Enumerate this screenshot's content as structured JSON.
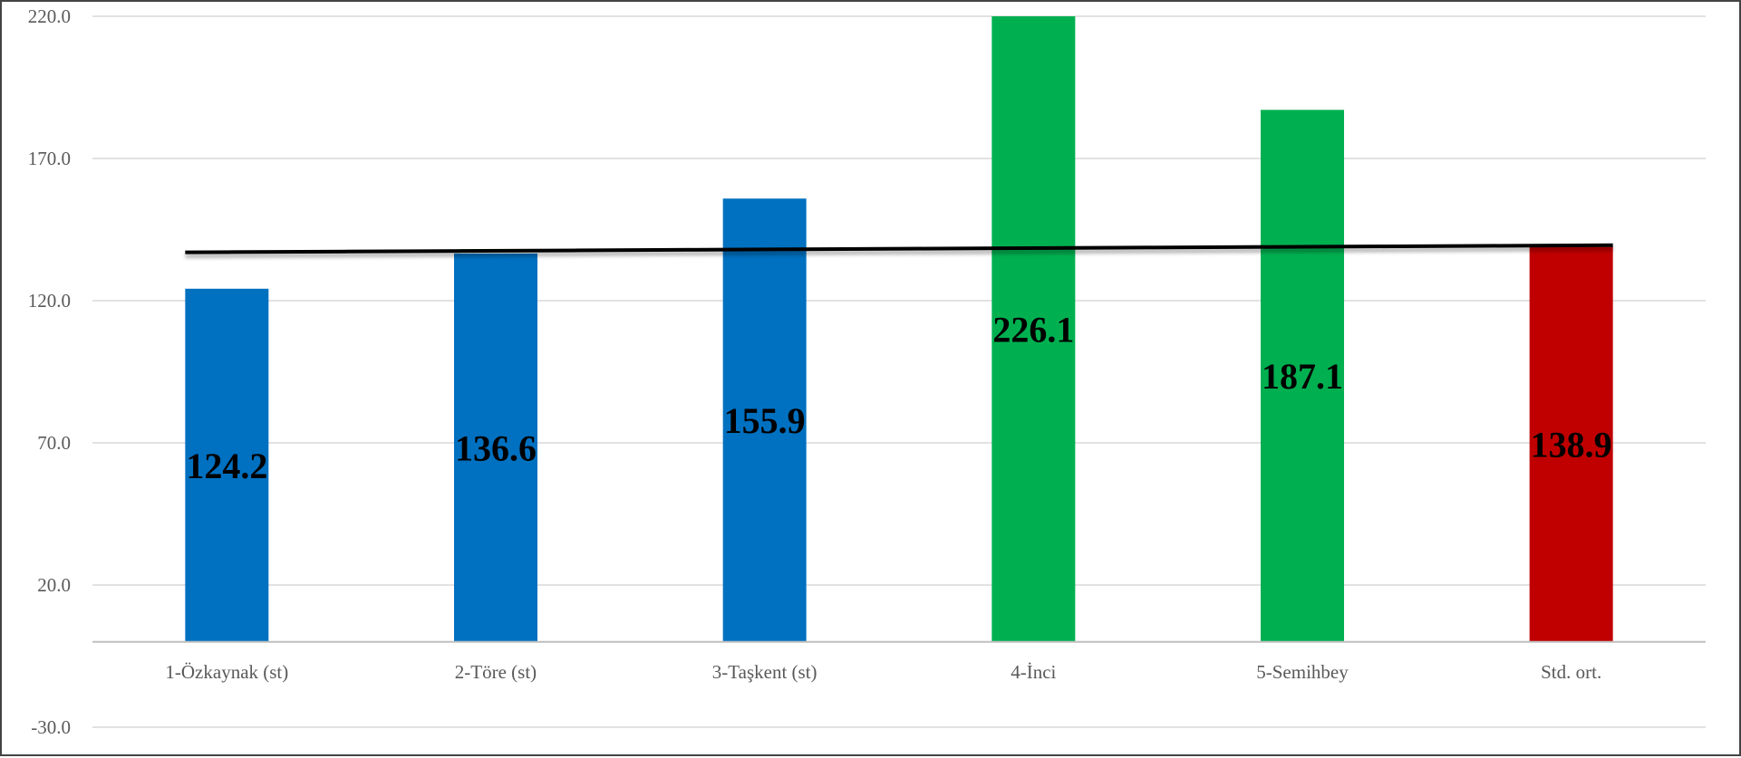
{
  "chart_data": {
    "type": "bar",
    "title": "",
    "xlabel": "",
    "ylabel": "",
    "categories": [
      "1-Özkaynak (st)",
      "2-Töre (st)",
      "3-Taşkent (st)",
      "4-İnci",
      "5-Semihbey",
      "Std. ort."
    ],
    "values": [
      124.2,
      136.6,
      155.9,
      226.1,
      187.1,
      138.9
    ],
    "data_labels": [
      "124.2",
      "136.6",
      "155.9",
      "226.1",
      "187.1",
      "138.9"
    ],
    "bar_colors": [
      "#0070c0",
      "#0070c0",
      "#0070c0",
      "#00b050",
      "#00b050",
      "#c00000"
    ],
    "ylim": [
      -30,
      220
    ],
    "yticks": [
      -30,
      20,
      70,
      120,
      170,
      220
    ],
    "ytick_labels": [
      "-30.0",
      "20.0",
      "70.0",
      "120.0",
      "170.0",
      "220.0"
    ],
    "grid": true,
    "reference_line": {
      "start_value": 137.0,
      "end_value": 139.5,
      "color": "#000000"
    },
    "legend": "none"
  }
}
